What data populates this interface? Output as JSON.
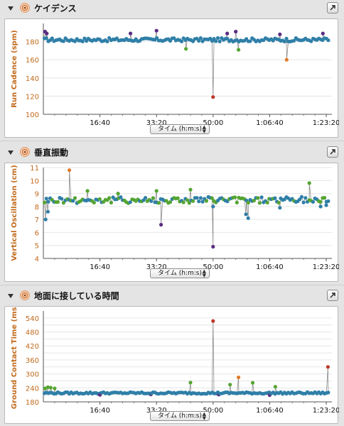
{
  "colors": {
    "series": "#2f7fa8",
    "high": "#5b2d83",
    "low": "#c0392b",
    "orange": "#e07b2a",
    "green": "#55a532",
    "axis_title": "#c26a1c",
    "grid": "#e6e6e6"
  },
  "sections": [
    {
      "title": "ケイデンス",
      "icon": "runner-icon",
      "axis_select": "タイム (h:m:s)"
    },
    {
      "title": "垂直振動",
      "icon": "runner-icon",
      "axis_select": "タイム (h:m:s)"
    },
    {
      "title": "地面に接している時間",
      "icon": "runner-icon",
      "axis_select": "タイム (h:m:s)"
    }
  ],
  "chart_data": [
    {
      "type": "scatter",
      "ylabel": "Run Cadence (spm)",
      "ylim": [
        100,
        200
      ],
      "yticks": [
        100,
        120,
        140,
        160,
        180
      ],
      "xlim": [
        0,
        5100
      ],
      "xticks": [
        1000,
        2000,
        3000,
        4000,
        5000
      ],
      "xtick_labels": [
        "16:40",
        "33:20",
        "50:00",
        "1:06:40",
        "1:23:20"
      ],
      "grid": true,
      "baseline": 182,
      "jitter": 2,
      "outliers": [
        {
          "x": 30,
          "y": 191,
          "c": "high"
        },
        {
          "x": 60,
          "y": 189,
          "c": "high"
        },
        {
          "x": 1540,
          "y": 189,
          "c": "high"
        },
        {
          "x": 2000,
          "y": 192,
          "c": "high"
        },
        {
          "x": 2520,
          "y": 172,
          "c": "green"
        },
        {
          "x": 3000,
          "y": 119,
          "c": "low"
        },
        {
          "x": 3250,
          "y": 189,
          "c": "high"
        },
        {
          "x": 3400,
          "y": 191,
          "c": "high"
        },
        {
          "x": 3450,
          "y": 171,
          "c": "green"
        },
        {
          "x": 4180,
          "y": 188,
          "c": "high"
        },
        {
          "x": 4300,
          "y": 160,
          "c": "orange"
        },
        {
          "x": 4940,
          "y": 189,
          "c": "high"
        }
      ]
    },
    {
      "type": "scatter",
      "ylabel": "Vertical Oscillation (cm)",
      "ylim": [
        4,
        11
      ],
      "yticks": [
        4,
        5,
        6,
        7,
        8,
        9,
        10,
        11
      ],
      "xlim": [
        0,
        5100
      ],
      "xticks": [
        1000,
        2000,
        3000,
        4000,
        5000
      ],
      "xtick_labels": [
        "16:40",
        "33:20",
        "50:00",
        "1:06:40",
        "1:23:20"
      ],
      "grid": true,
      "baseline": 8.5,
      "jitter": 0.25,
      "outliers": [
        {
          "x": 40,
          "y": 7.0,
          "c": "series"
        },
        {
          "x": 80,
          "y": 7.6,
          "c": "series"
        },
        {
          "x": 460,
          "y": 10.8,
          "c": "orange"
        },
        {
          "x": 780,
          "y": 9.2,
          "c": "green"
        },
        {
          "x": 1320,
          "y": 9.0,
          "c": "green"
        },
        {
          "x": 2000,
          "y": 9.2,
          "c": "green"
        },
        {
          "x": 2080,
          "y": 6.6,
          "c": "high"
        },
        {
          "x": 2600,
          "y": 9.3,
          "c": "green"
        },
        {
          "x": 3000,
          "y": 4.9,
          "c": "high"
        },
        {
          "x": 3000,
          "y": 8.0,
          "c": "series"
        },
        {
          "x": 3580,
          "y": 7.4,
          "c": "series"
        },
        {
          "x": 3620,
          "y": 7.1,
          "c": "series"
        },
        {
          "x": 4180,
          "y": 7.9,
          "c": "series"
        },
        {
          "x": 4700,
          "y": 9.8,
          "c": "green"
        },
        {
          "x": 4900,
          "y": 8.0,
          "c": "series"
        },
        {
          "x": 5000,
          "y": 8.1,
          "c": "series"
        }
      ]
    },
    {
      "type": "scatter",
      "ylabel": "Ground Contact Time (ms)",
      "ylim": [
        180,
        570
      ],
      "yticks": [
        180,
        210,
        240,
        270,
        300,
        330,
        360,
        390,
        420,
        450,
        480,
        510,
        540
      ],
      "ytick_labels_shown": [
        180,
        240,
        300,
        360,
        420,
        480,
        540
      ],
      "xlim": [
        0,
        5100
      ],
      "xticks": [
        1000,
        2000,
        3000,
        4000,
        5000
      ],
      "xtick_labels": [
        "16:40",
        "33:20",
        "50:00",
        "1:06:40",
        "1:23:20"
      ],
      "grid": true,
      "baseline": 218,
      "jitter": 4,
      "outliers": [
        {
          "x": 30,
          "y": 238,
          "c": "green"
        },
        {
          "x": 80,
          "y": 243,
          "c": "green"
        },
        {
          "x": 130,
          "y": 241,
          "c": "green"
        },
        {
          "x": 200,
          "y": 238,
          "c": "green"
        },
        {
          "x": 2600,
          "y": 263,
          "c": "green"
        },
        {
          "x": 3000,
          "y": 527,
          "c": "low"
        },
        {
          "x": 3300,
          "y": 254,
          "c": "green"
        },
        {
          "x": 3450,
          "y": 285,
          "c": "orange"
        },
        {
          "x": 3700,
          "y": 262,
          "c": "green"
        },
        {
          "x": 4100,
          "y": 245,
          "c": "green"
        },
        {
          "x": 5030,
          "y": 330,
          "c": "low"
        },
        {
          "x": 1000,
          "y": 210,
          "c": "high"
        },
        {
          "x": 1900,
          "y": 212,
          "c": "high"
        },
        {
          "x": 3100,
          "y": 211,
          "c": "high"
        },
        {
          "x": 4000,
          "y": 209,
          "c": "high"
        }
      ]
    }
  ]
}
